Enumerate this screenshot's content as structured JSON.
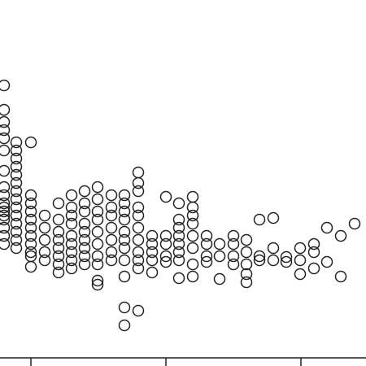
{
  "chart_data": {
    "type": "scatter",
    "x": [
      5,
      5,
      5,
      5,
      5,
      5,
      5,
      5,
      5,
      5,
      5,
      5,
      5,
      5,
      5,
      5,
      5,
      20,
      20,
      20,
      20,
      20,
      20,
      20,
      20,
      20,
      20,
      20,
      20,
      20,
      20,
      38,
      38,
      38,
      38,
      38,
      38,
      38,
      38,
      38,
      38,
      38,
      55,
      55,
      55,
      55,
      55,
      72,
      72,
      72,
      72,
      72,
      72,
      72,
      72,
      88,
      88,
      88,
      88,
      88,
      88,
      88,
      88,
      88,
      104,
      104,
      104,
      104,
      104,
      104,
      104,
      104,
      104,
      120,
      120,
      120,
      120,
      120,
      120,
      120,
      120,
      120,
      120,
      137,
      137,
      137,
      137,
      137,
      137,
      137,
      153,
      153,
      153,
      153,
      153,
      153,
      153,
      153,
      153,
      153,
      153,
      170,
      170,
      170,
      170,
      170,
      170,
      170,
      170,
      170,
      170,
      170,
      187,
      187,
      187,
      187,
      187,
      204,
      204,
      204,
      204,
      204,
      220,
      220,
      220,
      220,
      220,
      220,
      220,
      220,
      237,
      237,
      237,
      237,
      237,
      237,
      237,
      237,
      254,
      254,
      254,
      254,
      270,
      270,
      270,
      287,
      287,
      287,
      287,
      303,
      303,
      303,
      303,
      303,
      319,
      319,
      319,
      336,
      336,
      336,
      352,
      352,
      369,
      369,
      369,
      386,
      386,
      386,
      402,
      402,
      419,
      419,
      436
    ],
    "values": [
      105,
      135,
      150,
      160,
      170,
      185,
      210,
      230,
      240,
      250,
      255,
      260,
      265,
      270,
      280,
      290,
      300,
      175,
      185,
      195,
      205,
      215,
      225,
      235,
      245,
      255,
      265,
      275,
      285,
      295,
      305,
      175,
      240,
      250,
      260,
      270,
      280,
      290,
      300,
      310,
      315,
      328,
      265,
      280,
      295,
      310,
      320,
      250,
      270,
      285,
      295,
      305,
      315,
      325,
      335,
      240,
      255,
      265,
      275,
      290,
      300,
      310,
      320,
      330,
      235,
      250,
      260,
      275,
      285,
      295,
      305,
      315,
      325,
      230,
      245,
      260,
      270,
      285,
      300,
      315,
      325,
      345,
      350,
      240,
      255,
      265,
      280,
      295,
      310,
      320,
      240,
      250,
      260,
      270,
      285,
      295,
      305,
      320,
      340,
      378,
      400,
      212,
      225,
      235,
      255,
      265,
      280,
      295,
      310,
      320,
      330,
      382,
      290,
      300,
      310,
      320,
      335,
      242,
      290,
      300,
      315,
      322,
      250,
      270,
      280,
      290,
      300,
      310,
      320,
      342,
      242,
      255,
      265,
      275,
      290,
      305,
      325,
      340,
      290,
      300,
      315,
      322,
      300,
      315,
      343,
      290,
      300,
      315,
      325,
      295,
      310,
      325,
      337,
      347,
      270,
      315,
      320,
      268,
      305,
      320,
      316,
      322,
      305,
      320,
      337,
      300,
      310,
      330,
      280,
      322,
      290,
      340,
      275
    ],
    "color": "#222222",
    "xlim": [
      0,
      450
    ],
    "ylim": [
      450,
      0
    ],
    "xticks": [
      38,
      204,
      370
    ]
  }
}
